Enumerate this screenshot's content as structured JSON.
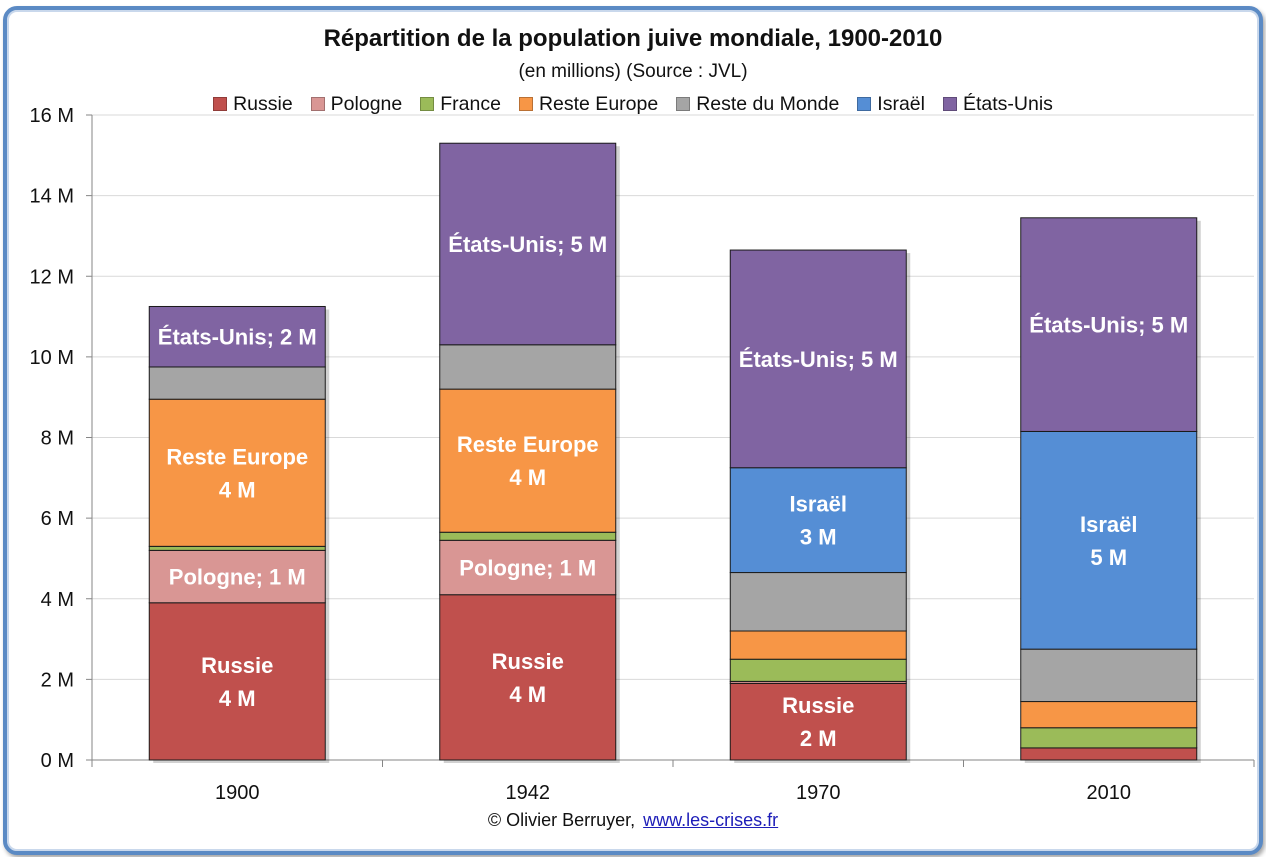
{
  "chart_data": {
    "type": "bar",
    "stacked": true,
    "title": "Répartition de la population juive mondiale, 1900-2010",
    "subtitle": "(en millions) (Source : JVL)",
    "categories": [
      "1900",
      "1942",
      "1970",
      "2010"
    ],
    "ylim": [
      0,
      16
    ],
    "yticks": [
      "0 M",
      "2 M",
      "4 M",
      "6 M",
      "8 M",
      "10 M",
      "12 M",
      "14 M",
      "16 M"
    ],
    "grid": true,
    "legend_position": "top",
    "series": [
      {
        "name": "Russie",
        "color": "#c0504d",
        "values": [
          3.9,
          4.1,
          1.9,
          0.3
        ]
      },
      {
        "name": "Pologne",
        "color": "#d99694",
        "values": [
          1.3,
          1.35,
          0.05,
          0.0
        ]
      },
      {
        "name": "France",
        "color": "#9bbb59",
        "values": [
          0.1,
          0.2,
          0.55,
          0.5
        ]
      },
      {
        "name": "Reste Europe",
        "color": "#f79646",
        "values": [
          3.65,
          3.55,
          0.7,
          0.65
        ]
      },
      {
        "name": "Reste du Monde",
        "color": "#a5a5a5",
        "values": [
          0.8,
          1.1,
          1.45,
          1.3
        ]
      },
      {
        "name": "Israël",
        "color": "#558ed5",
        "values": [
          0.0,
          0.0,
          2.6,
          5.4
        ]
      },
      {
        "name": "États-Unis",
        "color": "#8064a2",
        "values": [
          1.5,
          5.0,
          5.4,
          5.3
        ]
      }
    ],
    "data_labels": [
      {
        "category": "1900",
        "series": "Russie",
        "lines": [
          "Russie",
          "4 M"
        ]
      },
      {
        "category": "1900",
        "series": "Pologne",
        "lines": [
          "Pologne; 1 M"
        ]
      },
      {
        "category": "1900",
        "series": "Reste Europe",
        "lines": [
          "Reste Europe",
          "4 M"
        ]
      },
      {
        "category": "1900",
        "series": "États-Unis",
        "lines": [
          "États-Unis; 2 M"
        ]
      },
      {
        "category": "1942",
        "series": "Russie",
        "lines": [
          "Russie",
          "4 M"
        ]
      },
      {
        "category": "1942",
        "series": "Pologne",
        "lines": [
          "Pologne; 1 M"
        ]
      },
      {
        "category": "1942",
        "series": "Reste Europe",
        "lines": [
          "Reste Europe",
          "4 M"
        ]
      },
      {
        "category": "1942",
        "series": "États-Unis",
        "lines": [
          "États-Unis; 5 M"
        ]
      },
      {
        "category": "1970",
        "series": "Russie",
        "lines": [
          "Russie",
          "2 M"
        ]
      },
      {
        "category": "1970",
        "series": "Israël",
        "lines": [
          "Israël",
          "3 M"
        ]
      },
      {
        "category": "1970",
        "series": "États-Unis",
        "lines": [
          "États-Unis; 5 M"
        ]
      },
      {
        "category": "2010",
        "series": "Israël",
        "lines": [
          "Israël",
          "5 M"
        ]
      },
      {
        "category": "2010",
        "series": "États-Unis",
        "lines": [
          "États-Unis; 5 M"
        ]
      }
    ]
  },
  "credit": {
    "author": "© Olivier Berruyer,",
    "link": "www.les-crises.fr"
  },
  "colors": {
    "frame_border": "#5b8ac4",
    "gridline": "#d9d9d9",
    "axis": "#868686"
  }
}
